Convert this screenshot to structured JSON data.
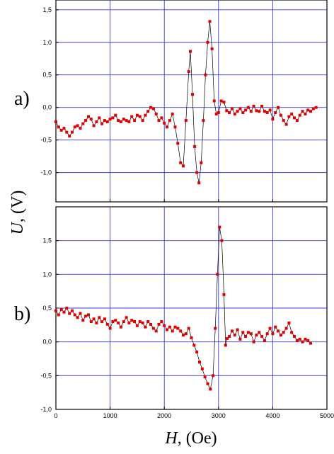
{
  "chart_data": [
    {
      "type": "line",
      "panel_label": "a)",
      "xlim": [
        0,
        5000
      ],
      "ylim": [
        -1.45,
        1.65
      ],
      "xticks": [
        0,
        1000,
        2000,
        3000,
        4000,
        5000
      ],
      "yticks": [
        -1.0,
        -0.5,
        0.0,
        0.5,
        1.0,
        1.5
      ],
      "ytick_labels": [
        "-1,0",
        "-0,5",
        "0,0",
        "0,5",
        "1,0",
        "1,5"
      ],
      "grid": true,
      "series": [
        {
          "color": "#e00000",
          "x": [
            0,
            50,
            100,
            150,
            200,
            250,
            300,
            350,
            400,
            450,
            500,
            550,
            600,
            650,
            700,
            750,
            800,
            850,
            900,
            950,
            1000,
            1050,
            1100,
            1150,
            1200,
            1250,
            1300,
            1350,
            1400,
            1450,
            1500,
            1550,
            1600,
            1650,
            1700,
            1750,
            1800,
            1850,
            1900,
            1950,
            2000,
            2050,
            2100,
            2150,
            2200,
            2250,
            2300,
            2350,
            2400,
            2450,
            2480,
            2520,
            2560,
            2600,
            2640,
            2680,
            2720,
            2760,
            2800,
            2840,
            2880,
            2920,
            2960,
            3000,
            3050,
            3100,
            3150,
            3200,
            3250,
            3300,
            3350,
            3400,
            3450,
            3500,
            3550,
            3600,
            3650,
            3700,
            3750,
            3800,
            3850,
            3900,
            3950,
            4000,
            4050,
            4100,
            4150,
            4200,
            4250,
            4300,
            4350,
            4400,
            4450,
            4500,
            4550,
            4600,
            4650,
            4700,
            4750,
            4800
          ],
          "y": [
            -0.22,
            -0.3,
            -0.35,
            -0.32,
            -0.38,
            -0.44,
            -0.38,
            -0.3,
            -0.28,
            -0.32,
            -0.25,
            -0.2,
            -0.14,
            -0.18,
            -0.28,
            -0.22,
            -0.16,
            -0.25,
            -0.2,
            -0.22,
            -0.18,
            -0.16,
            -0.12,
            -0.2,
            -0.22,
            -0.18,
            -0.2,
            -0.22,
            -0.14,
            -0.2,
            -0.12,
            -0.14,
            -0.2,
            -0.12,
            -0.06,
            0.0,
            -0.02,
            -0.1,
            -0.2,
            -0.16,
            -0.24,
            -0.3,
            -0.2,
            -0.1,
            -0.3,
            -0.55,
            -0.85,
            -0.9,
            -0.2,
            0.55,
            0.86,
            0.2,
            -0.6,
            -1.0,
            -1.16,
            -0.85,
            -0.2,
            0.5,
            1.0,
            1.32,
            0.9,
            0.1,
            -0.1,
            -0.08,
            0.1,
            0.08,
            -0.05,
            -0.08,
            -0.02,
            -0.1,
            -0.06,
            -0.02,
            -0.08,
            -0.04,
            0.0,
            -0.06,
            0.02,
            -0.05,
            -0.06,
            0.02,
            -0.06,
            -0.08,
            -0.04,
            -0.18,
            -0.08,
            0.0,
            -0.12,
            -0.2,
            -0.26,
            -0.14,
            -0.1,
            -0.16,
            -0.2,
            -0.12,
            -0.06,
            -0.1,
            -0.04,
            -0.06,
            -0.02,
            0.0
          ]
        }
      ]
    },
    {
      "type": "line",
      "panel_label": "b)",
      "xlim": [
        0,
        5000
      ],
      "ylim": [
        -1.0,
        2.0
      ],
      "xticks": [
        0,
        1000,
        2000,
        3000,
        4000,
        5000
      ],
      "xtick_labels": [
        "0",
        "1000",
        "2000",
        "3000",
        "4000",
        "5000"
      ],
      "yticks": [
        -1.0,
        -0.5,
        0.0,
        0.5,
        1.0,
        1.5
      ],
      "ytick_labels": [
        "-1,0",
        "-0,5",
        "0,0",
        "0,5",
        "1,0",
        "1,5"
      ],
      "grid": true,
      "series": [
        {
          "color": "#e00000",
          "x": [
            0,
            50,
            100,
            150,
            200,
            250,
            300,
            350,
            400,
            450,
            500,
            550,
            600,
            650,
            700,
            750,
            800,
            850,
            900,
            950,
            1000,
            1050,
            1100,
            1150,
            1200,
            1250,
            1300,
            1350,
            1400,
            1450,
            1500,
            1550,
            1600,
            1650,
            1700,
            1750,
            1800,
            1850,
            1900,
            1950,
            2000,
            2050,
            2100,
            2150,
            2200,
            2250,
            2300,
            2350,
            2400,
            2450,
            2500,
            2550,
            2600,
            2650,
            2700,
            2750,
            2800,
            2850,
            2900,
            2940,
            2980,
            3020,
            3060,
            3100,
            3130,
            3160,
            3200,
            3250,
            3300,
            3350,
            3400,
            3450,
            3500,
            3550,
            3600,
            3650,
            3700,
            3750,
            3800,
            3850,
            3900,
            3950,
            4000,
            4050,
            4100,
            4150,
            4200,
            4250,
            4300,
            4350,
            4400,
            4450,
            4500,
            4550,
            4600,
            4650,
            4700
          ],
          "y": [
            0.46,
            0.4,
            0.48,
            0.44,
            0.5,
            0.42,
            0.46,
            0.4,
            0.36,
            0.42,
            0.32,
            0.38,
            0.4,
            0.3,
            0.34,
            0.28,
            0.36,
            0.3,
            0.34,
            0.26,
            0.2,
            0.3,
            0.32,
            0.28,
            0.22,
            0.3,
            0.36,
            0.28,
            0.32,
            0.3,
            0.24,
            0.3,
            0.28,
            0.22,
            0.3,
            0.26,
            0.2,
            0.16,
            0.26,
            0.3,
            0.24,
            0.18,
            0.22,
            0.16,
            0.22,
            0.2,
            0.16,
            0.1,
            0.12,
            0.2,
            0.06,
            -0.05,
            -0.15,
            -0.3,
            -0.4,
            -0.52,
            -0.62,
            -0.7,
            -0.5,
            0.2,
            1.0,
            1.7,
            1.5,
            0.7,
            -0.05,
            0.05,
            0.08,
            0.16,
            0.1,
            0.18,
            0.04,
            0.14,
            0.08,
            0.14,
            0.12,
            0.0,
            0.1,
            0.14,
            0.08,
            0.02,
            0.12,
            0.2,
            0.12,
            0.22,
            0.16,
            0.1,
            0.14,
            0.2,
            0.28,
            0.14,
            0.08,
            0.02,
            0.04,
            0.0,
            0.04,
            0.02,
            -0.02
          ]
        }
      ]
    }
  ],
  "axes": {
    "ylabel_var": "U",
    "ylabel_rest": ", (V)",
    "xlabel_var": "H",
    "xlabel_rest": ", (Oe)"
  }
}
